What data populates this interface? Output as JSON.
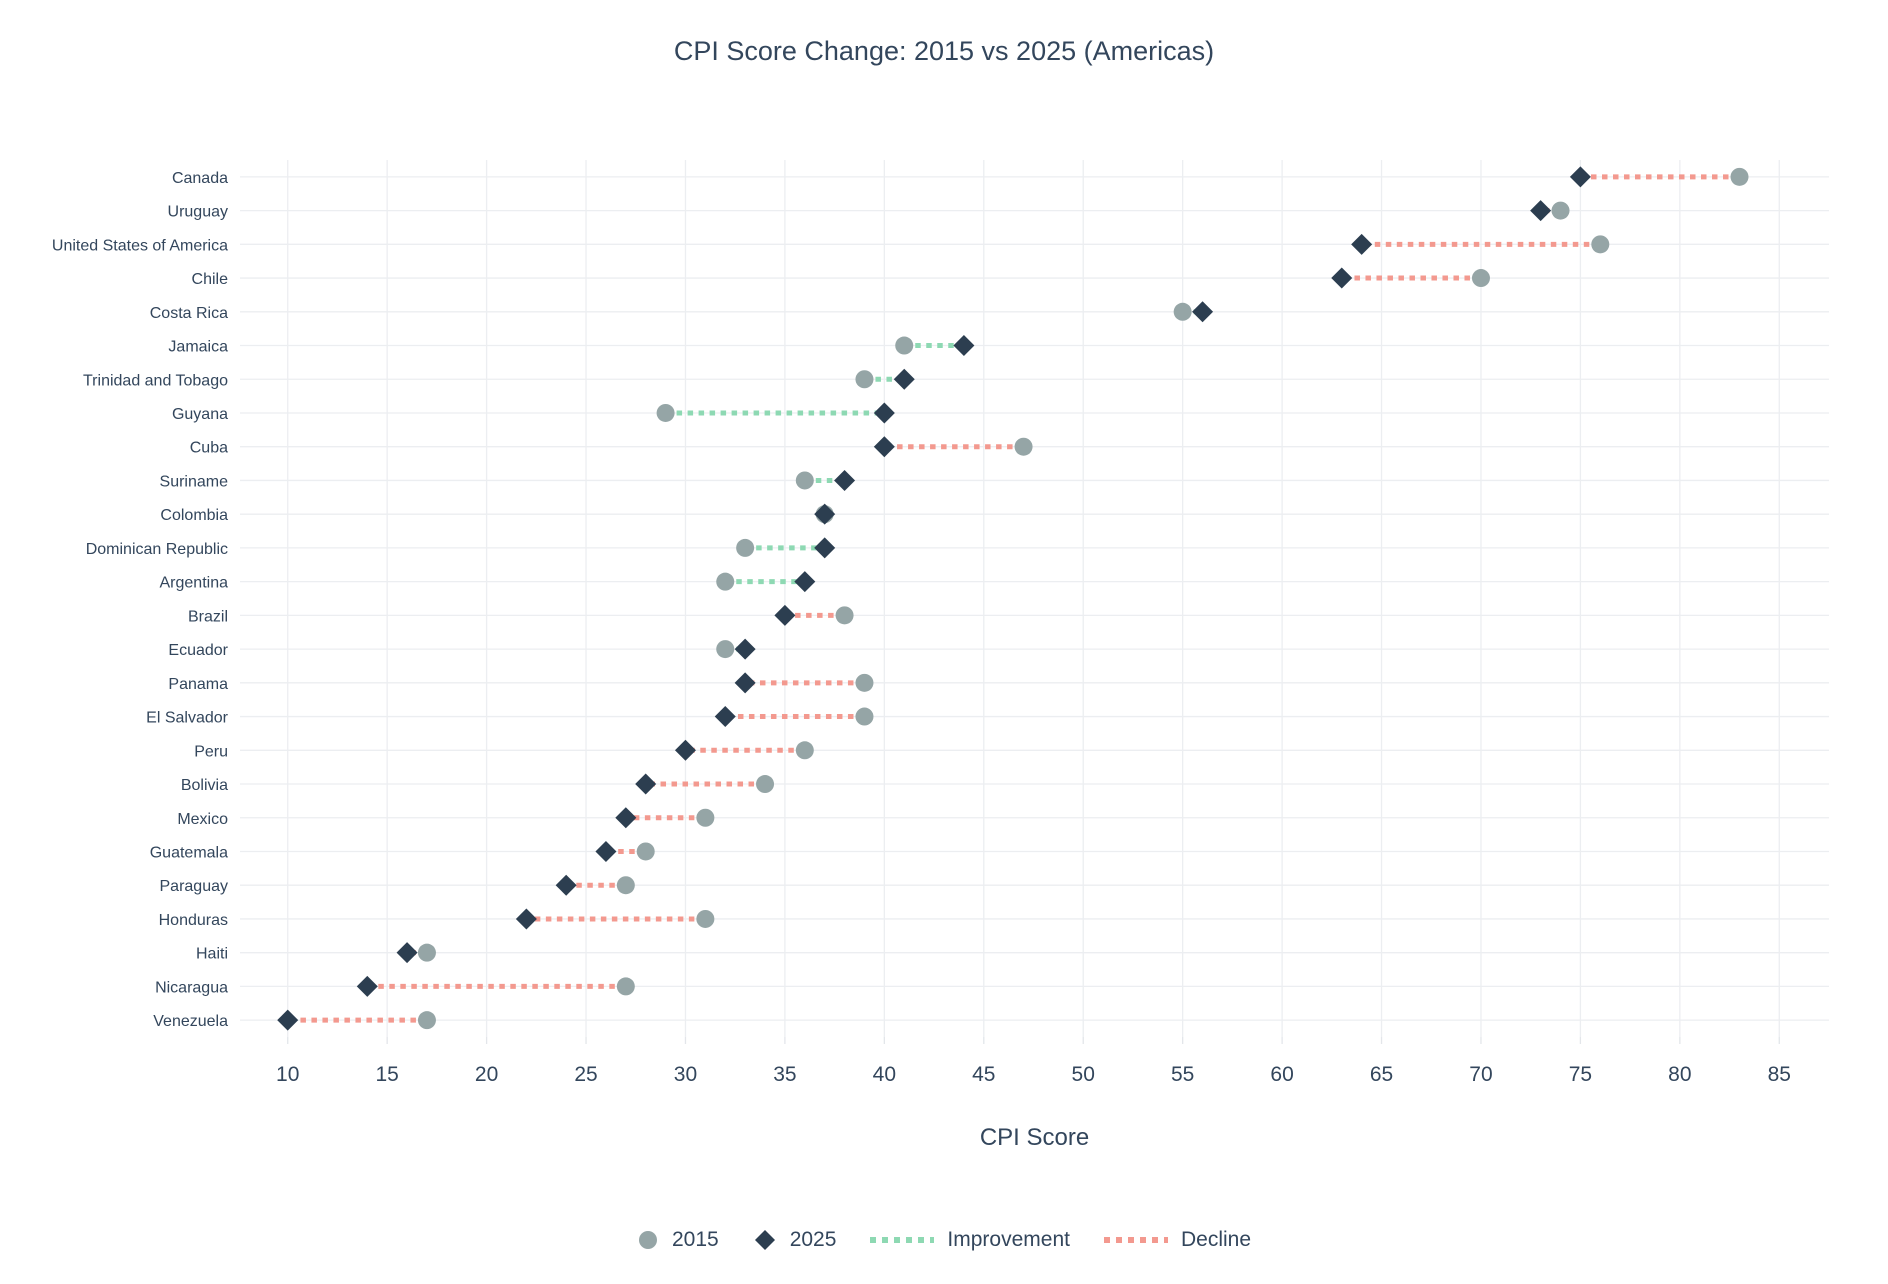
{
  "chart_data": {
    "type": "dumbbell",
    "title": "CPI Score Change: 2015 vs 2025 (Americas)",
    "xlabel": "CPI Score",
    "x_ticks": [
      10,
      15,
      20,
      25,
      30,
      35,
      40,
      45,
      50,
      55,
      60,
      65,
      70,
      75,
      80,
      85
    ],
    "x_range": [
      7.6,
      87.5
    ],
    "grid": true,
    "legend_position": "bottom-center",
    "categories": [
      "Canada",
      "Uruguay",
      "United States of America",
      "Chile",
      "Costa Rica",
      "Jamaica",
      "Trinidad and Tobago",
      "Guyana",
      "Cuba",
      "Suriname",
      "Colombia",
      "Dominican Republic",
      "Argentina",
      "Brazil",
      "Ecuador",
      "Panama",
      "El Salvador",
      "Peru",
      "Bolivia",
      "Mexico",
      "Guatemala",
      "Paraguay",
      "Honduras",
      "Haiti",
      "Nicaragua",
      "Venezuela"
    ],
    "series": [
      {
        "name": "2015",
        "marker": "circle",
        "values": [
          83,
          74,
          76,
          70,
          55,
          41,
          39,
          29,
          47,
          36,
          37,
          33,
          32,
          38,
          32,
          39,
          39,
          36,
          34,
          31,
          28,
          27,
          31,
          17,
          27,
          17
        ]
      },
      {
        "name": "2025",
        "marker": "diamond",
        "values": [
          75,
          73,
          64,
          63,
          56,
          44,
          41,
          40,
          40,
          38,
          37,
          37,
          36,
          35,
          33,
          33,
          32,
          30,
          28,
          27,
          26,
          24,
          22,
          16,
          14,
          10
        ]
      }
    ],
    "legend": {
      "s2015": "2015",
      "s2025": "2025",
      "improvement": "Improvement",
      "decline": "Decline"
    },
    "colors": {
      "circle_2015": "#95a5a6",
      "diamond_2025": "#2c3e50",
      "improvement": "#8ed9b3",
      "decline": "#f3998f",
      "grid": "#eceef1",
      "tick_stub": "#e3e6ea",
      "text": "#33465c"
    }
  }
}
